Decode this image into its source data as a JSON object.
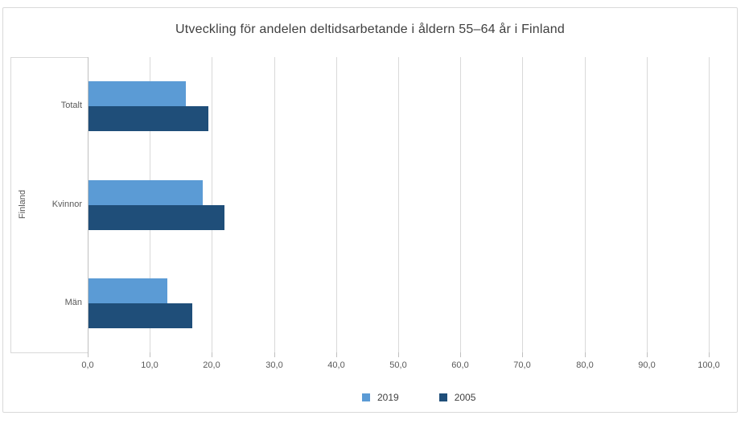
{
  "chart_data": {
    "type": "bar",
    "orientation": "horizontal",
    "title": "Utveckling för andelen deltidsarbetande i åldern 55–64 år i Finland",
    "outer_category_label": "Finland",
    "categories": [
      "Totalt",
      "Kvinnor",
      "Män"
    ],
    "series": [
      {
        "name": "2019",
        "color": "#5B9BD5",
        "values": [
          15.7,
          18.4,
          12.7
        ]
      },
      {
        "name": "2005",
        "color": "#1F4E79",
        "values": [
          19.3,
          21.9,
          16.7
        ]
      }
    ],
    "x_axis": {
      "min": 0,
      "max": 100,
      "tick_interval": 10,
      "tick_labels": [
        "0,0",
        "10,0",
        "20,0",
        "30,0",
        "40,0",
        "50,0",
        "60,0",
        "70,0",
        "80,0",
        "90,0",
        "100,0"
      ]
    },
    "legend": {
      "position": "bottom",
      "entries": [
        "2019",
        "2005"
      ]
    },
    "grid": true
  },
  "colors": {
    "series_2019": "#5B9BD5",
    "series_2005": "#1F4E79",
    "gridline": "#D9D9D9",
    "axis_line": "#BFBFBF",
    "frame_border": "#D9D9D9",
    "title_text": "#404040",
    "axis_text": "#595959"
  }
}
